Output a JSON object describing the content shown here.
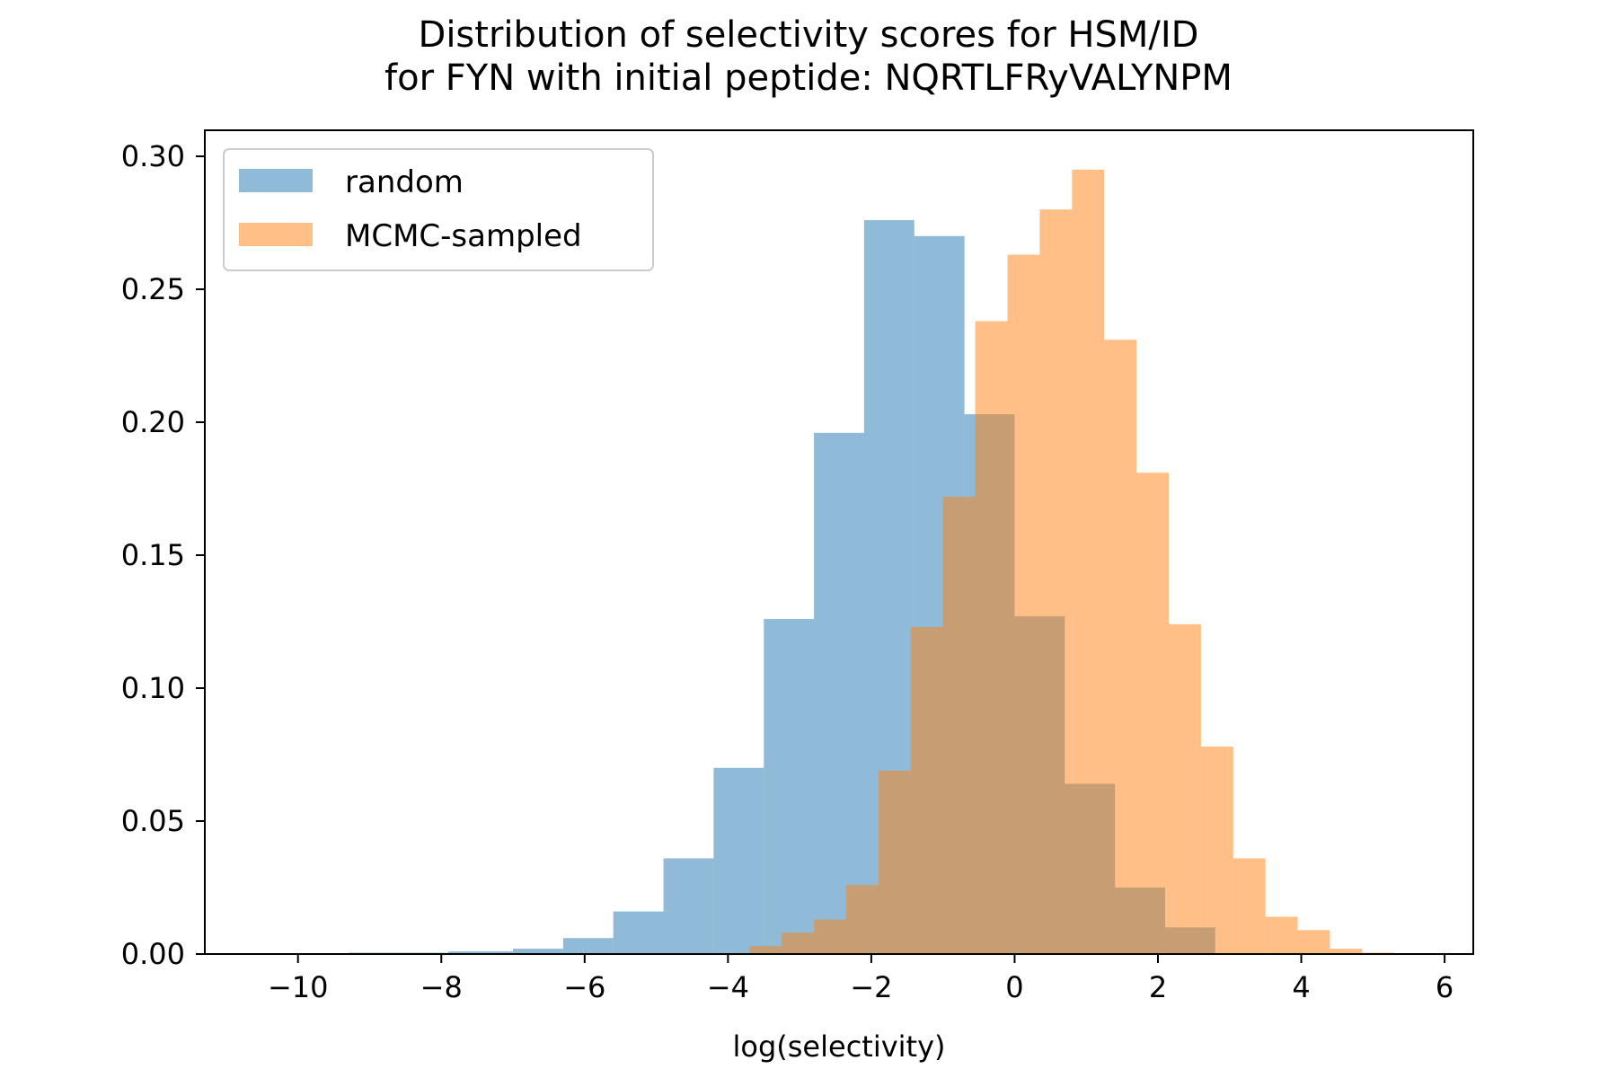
{
  "chart_data": {
    "type": "bar",
    "title": [
      "Distribution of selectivity scores for HSM/ID",
      "for FYN with initial peptide: NQRTLFRyVALYNPM"
    ],
    "xlabel": "log(selectivity)",
    "ylabel": "",
    "xlim": [
      -11.3,
      6.4
    ],
    "ylim": [
      0,
      0.3
    ],
    "xticks": [
      -10,
      -8,
      -6,
      -4,
      -2,
      0,
      2,
      4,
      6
    ],
    "xtick_labels": [
      "−10",
      "−8",
      "−6",
      "−4",
      "−2",
      "0",
      "2",
      "4",
      "6"
    ],
    "yticks": [
      0,
      0.05,
      0.1,
      0.15,
      0.2,
      0.25,
      0.3
    ],
    "ytick_labels": [
      "0.00",
      "0.05",
      "0.10",
      "0.15",
      "0.20",
      "0.25",
      "0.30"
    ],
    "grid": false,
    "legend_position": "top-left",
    "bar_opacity": 0.5,
    "series": [
      {
        "name": "random",
        "color": "#1f77b4",
        "bins": [
          {
            "x0": -10.0,
            "x1": -9.3,
            "y": 0.0
          },
          {
            "x0": -9.3,
            "x1": -8.6,
            "y": 0.0005
          },
          {
            "x0": -8.6,
            "x1": -7.9,
            "y": 0.0005
          },
          {
            "x0": -7.9,
            "x1": -7.0,
            "y": 0.001
          },
          {
            "x0": -7.0,
            "x1": -6.3,
            "y": 0.002
          },
          {
            "x0": -6.3,
            "x1": -5.6,
            "y": 0.006
          },
          {
            "x0": -5.6,
            "x1": -4.9,
            "y": 0.016
          },
          {
            "x0": -4.9,
            "x1": -4.2,
            "y": 0.036
          },
          {
            "x0": -4.2,
            "x1": -3.5,
            "y": 0.07
          },
          {
            "x0": -3.5,
            "x1": -2.8,
            "y": 0.126
          },
          {
            "x0": -2.8,
            "x1": -2.1,
            "y": 0.196
          },
          {
            "x0": -2.1,
            "x1": -1.4,
            "y": 0.276
          },
          {
            "x0": -1.4,
            "x1": -0.7,
            "y": 0.27
          },
          {
            "x0": -0.7,
            "x1": 0.0,
            "y": 0.203
          },
          {
            "x0": 0.0,
            "x1": 0.7,
            "y": 0.127
          },
          {
            "x0": 0.7,
            "x1": 1.4,
            "y": 0.064
          },
          {
            "x0": 1.4,
            "x1": 2.1,
            "y": 0.025
          },
          {
            "x0": 2.1,
            "x1": 2.8,
            "y": 0.01
          }
        ]
      },
      {
        "name": "MCMC-sampled",
        "color": "#ff7f0e",
        "bins": [
          {
            "x0": -3.7,
            "x1": -3.25,
            "y": 0.003
          },
          {
            "x0": -3.25,
            "x1": -2.8,
            "y": 0.008
          },
          {
            "x0": -2.8,
            "x1": -2.35,
            "y": 0.013
          },
          {
            "x0": -2.35,
            "x1": -1.9,
            "y": 0.026
          },
          {
            "x0": -1.9,
            "x1": -1.45,
            "y": 0.069
          },
          {
            "x0": -1.45,
            "x1": -1.0,
            "y": 0.123
          },
          {
            "x0": -1.0,
            "x1": -0.55,
            "y": 0.172
          },
          {
            "x0": -0.55,
            "x1": -0.1,
            "y": 0.238
          },
          {
            "x0": -0.1,
            "x1": 0.35,
            "y": 0.263
          },
          {
            "x0": 0.35,
            "x1": 0.8,
            "y": 0.28
          },
          {
            "x0": 0.8,
            "x1": 1.25,
            "y": 0.295
          },
          {
            "x0": 1.25,
            "x1": 1.7,
            "y": 0.231
          },
          {
            "x0": 1.7,
            "x1": 2.15,
            "y": 0.181
          },
          {
            "x0": 2.15,
            "x1": 2.6,
            "y": 0.124
          },
          {
            "x0": 2.6,
            "x1": 3.05,
            "y": 0.078
          },
          {
            "x0": 3.05,
            "x1": 3.5,
            "y": 0.036
          },
          {
            "x0": 3.5,
            "x1": 3.95,
            "y": 0.014
          },
          {
            "x0": 3.95,
            "x1": 4.4,
            "y": 0.009
          },
          {
            "x0": 4.4,
            "x1": 4.85,
            "y": 0.002
          },
          {
            "x0": 4.85,
            "x1": 5.3,
            "y": 0.0005
          }
        ]
      }
    ]
  }
}
